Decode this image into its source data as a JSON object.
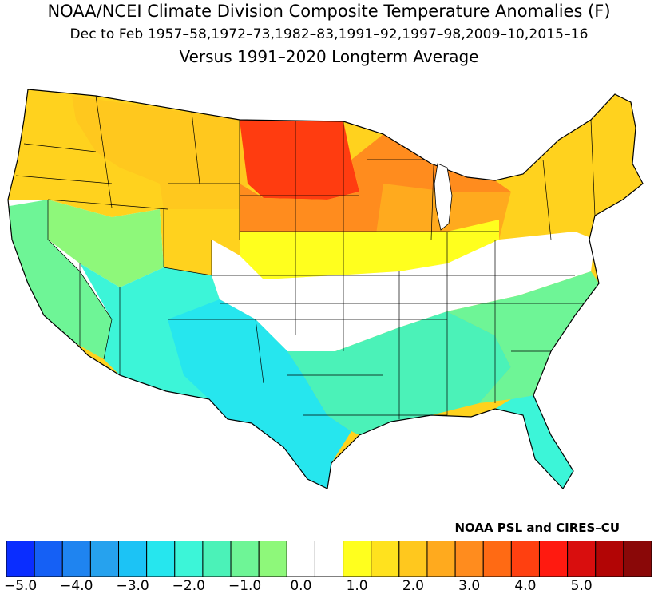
{
  "title": {
    "line1": "NOAA/NCEI Climate Division Composite Temperature Anomalies (F)",
    "line2": "Dec to Feb  1957–58,1972–73,1982–83,1991–92,1997–98,2009–10,2015–16",
    "line3": "Versus 1991–2020 Longterm Average"
  },
  "credit": "NOAA PSL and CIRES–CU",
  "colorbar": {
    "colors": [
      "#0a2dff",
      "#1560f5",
      "#1f84f0",
      "#26a2ee",
      "#1cc3f5",
      "#26e6ee",
      "#3cf5d8",
      "#4bf2b8",
      "#6ef596",
      "#8ef87a",
      "#ffffff",
      "#ffffff",
      "#ffff1e",
      "#ffe21e",
      "#ffc81e",
      "#ffaa1e",
      "#ff8c1e",
      "#ff6a14",
      "#ff4010",
      "#ff1a10",
      "#d90e0e",
      "#b20505",
      "#8a0808"
    ],
    "tick_labels": [
      "−5.0",
      "−4.0",
      "−3.0",
      "−2.0",
      "−1.0",
      "0.0",
      "1.0",
      "2.0",
      "3.0",
      "4.0",
      "5.0"
    ]
  },
  "map_regions": {
    "northwest": "#ffd21e",
    "west_coast_inland": "#ffffff",
    "northern_rockies": "#ffc81e",
    "north_central": "#ff3c10",
    "upper_midwest_east": "#ff8c1e",
    "great_lakes": "#ffaa1e",
    "northeast": "#ffd21e",
    "central_band_yellow": "#ffff1e",
    "central_white": "#ffffff",
    "california": "#6ef596",
    "great_basin": "#8ef87a",
    "southwest": "#3cf5d8",
    "texas_new_mexico": "#26e6ee",
    "gulf_southeast": "#4bf2b8",
    "southeast_atlantic": "#6ef596",
    "florida": "#3cf5d8",
    "water": "#ffffff"
  }
}
